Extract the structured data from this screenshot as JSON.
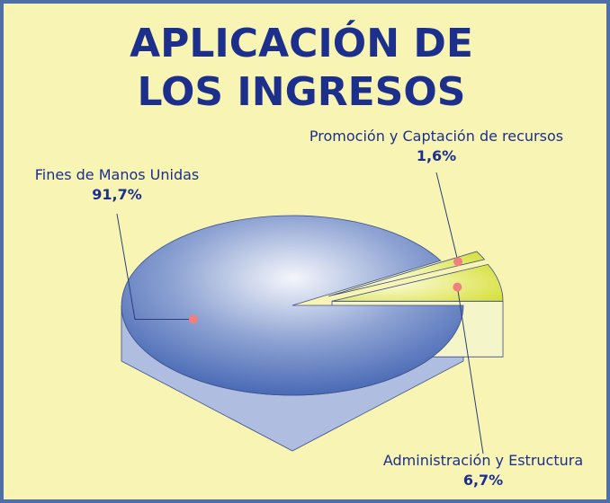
{
  "chart_data": {
    "type": "pie",
    "title": "APLICACIÓN DE LOS INGRESOS",
    "categories": [
      "Fines de Manos Unidas",
      "Promoción y Captación de recursos",
      "Administración y Estructura"
    ],
    "values": [
      91.7,
      1.6,
      6.7
    ],
    "value_labels": [
      "91,7%",
      "1,6%",
      "6,7%"
    ],
    "colors": [
      "#3d60b0",
      "#e6ea70",
      "#e6ea70"
    ]
  }
}
